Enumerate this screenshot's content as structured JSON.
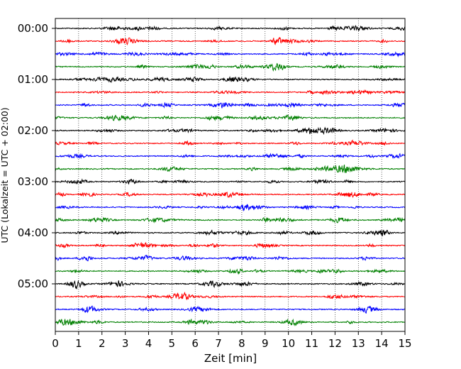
{
  "chart_data": {
    "type": "line",
    "title": "",
    "xlabel": "Zeit  [min]",
    "ylabel": "UTC (Lokalzeit = UTC + 02:00)",
    "xlim": [
      0,
      15
    ],
    "x_ticks": [
      0,
      1,
      2,
      3,
      4,
      5,
      6,
      7,
      8,
      9,
      10,
      11,
      12,
      13,
      14,
      15
    ],
    "y_tick_labels": [
      "00:00",
      "01:00",
      "02:00",
      "03:00",
      "04:00",
      "05:00"
    ],
    "trace_interval_minutes": 15,
    "trace_count": 24,
    "trace_colors": [
      "#000000",
      "#ff0000",
      "#0000ff",
      "#008000"
    ],
    "vertical_grid": "dotted",
    "legend": "none"
  }
}
